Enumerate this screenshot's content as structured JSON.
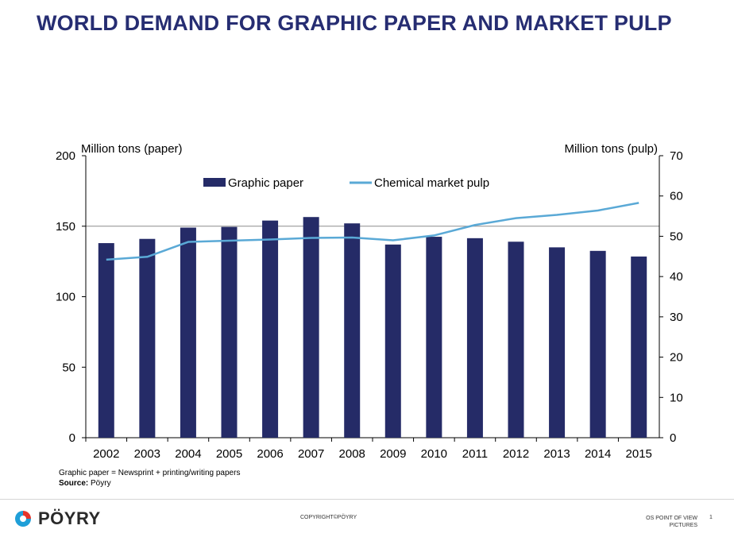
{
  "title": "WORLD DEMAND FOR GRAPHIC PAPER AND MARKET PULP",
  "notes": {
    "definition": "Graphic paper = Newsprint + printing/writing papers",
    "source_label": "Source:",
    "source_value": "Pöyry"
  },
  "footer": {
    "logo_text": "PÖYRY",
    "copyright": "COPYRIGHT©PÖYRY",
    "right_line1": "OS POINT OF VIEW",
    "right_line2": "PICTURES",
    "page_number": "1"
  },
  "colors": {
    "title": "#262d72",
    "bar": "#252b67",
    "line": "#5aa9d6",
    "logo_accent": "#1f9fd8",
    "logo_accent2": "#e4352b"
  },
  "chart_data": {
    "type": "bar",
    "categories": [
      "2002",
      "2003",
      "2004",
      "2005",
      "2006",
      "2007",
      "2008",
      "2009",
      "2010",
      "2011",
      "2012",
      "2013",
      "2014",
      "2015"
    ],
    "y_left_label": "Million tons (paper)",
    "y_right_label": "Million tons (pulp)",
    "ylim_left": [
      0,
      200
    ],
    "ylim_right": [
      0,
      70
    ],
    "yticks_left": [
      0,
      50,
      100,
      150,
      200
    ],
    "yticks_right": [
      0,
      10,
      20,
      30,
      40,
      50,
      60,
      70
    ],
    "legend_position": "top-center",
    "gridlines": [
      150
    ],
    "series": [
      {
        "name": "Graphic paper",
        "kind": "bar",
        "axis": "left",
        "values": [
          138,
          141,
          149,
          149.5,
          154,
          156.5,
          152,
          137,
          142.5,
          141.5,
          139,
          135,
          132.5,
          128.5
        ]
      },
      {
        "name": "Chemical market pulp",
        "kind": "line",
        "axis": "right",
        "values": [
          44.2,
          44.9,
          48.6,
          48.9,
          49.2,
          49.6,
          49.7,
          49.0,
          50.2,
          52.8,
          54.5,
          55.3,
          56.4,
          58.3
        ]
      }
    ]
  }
}
